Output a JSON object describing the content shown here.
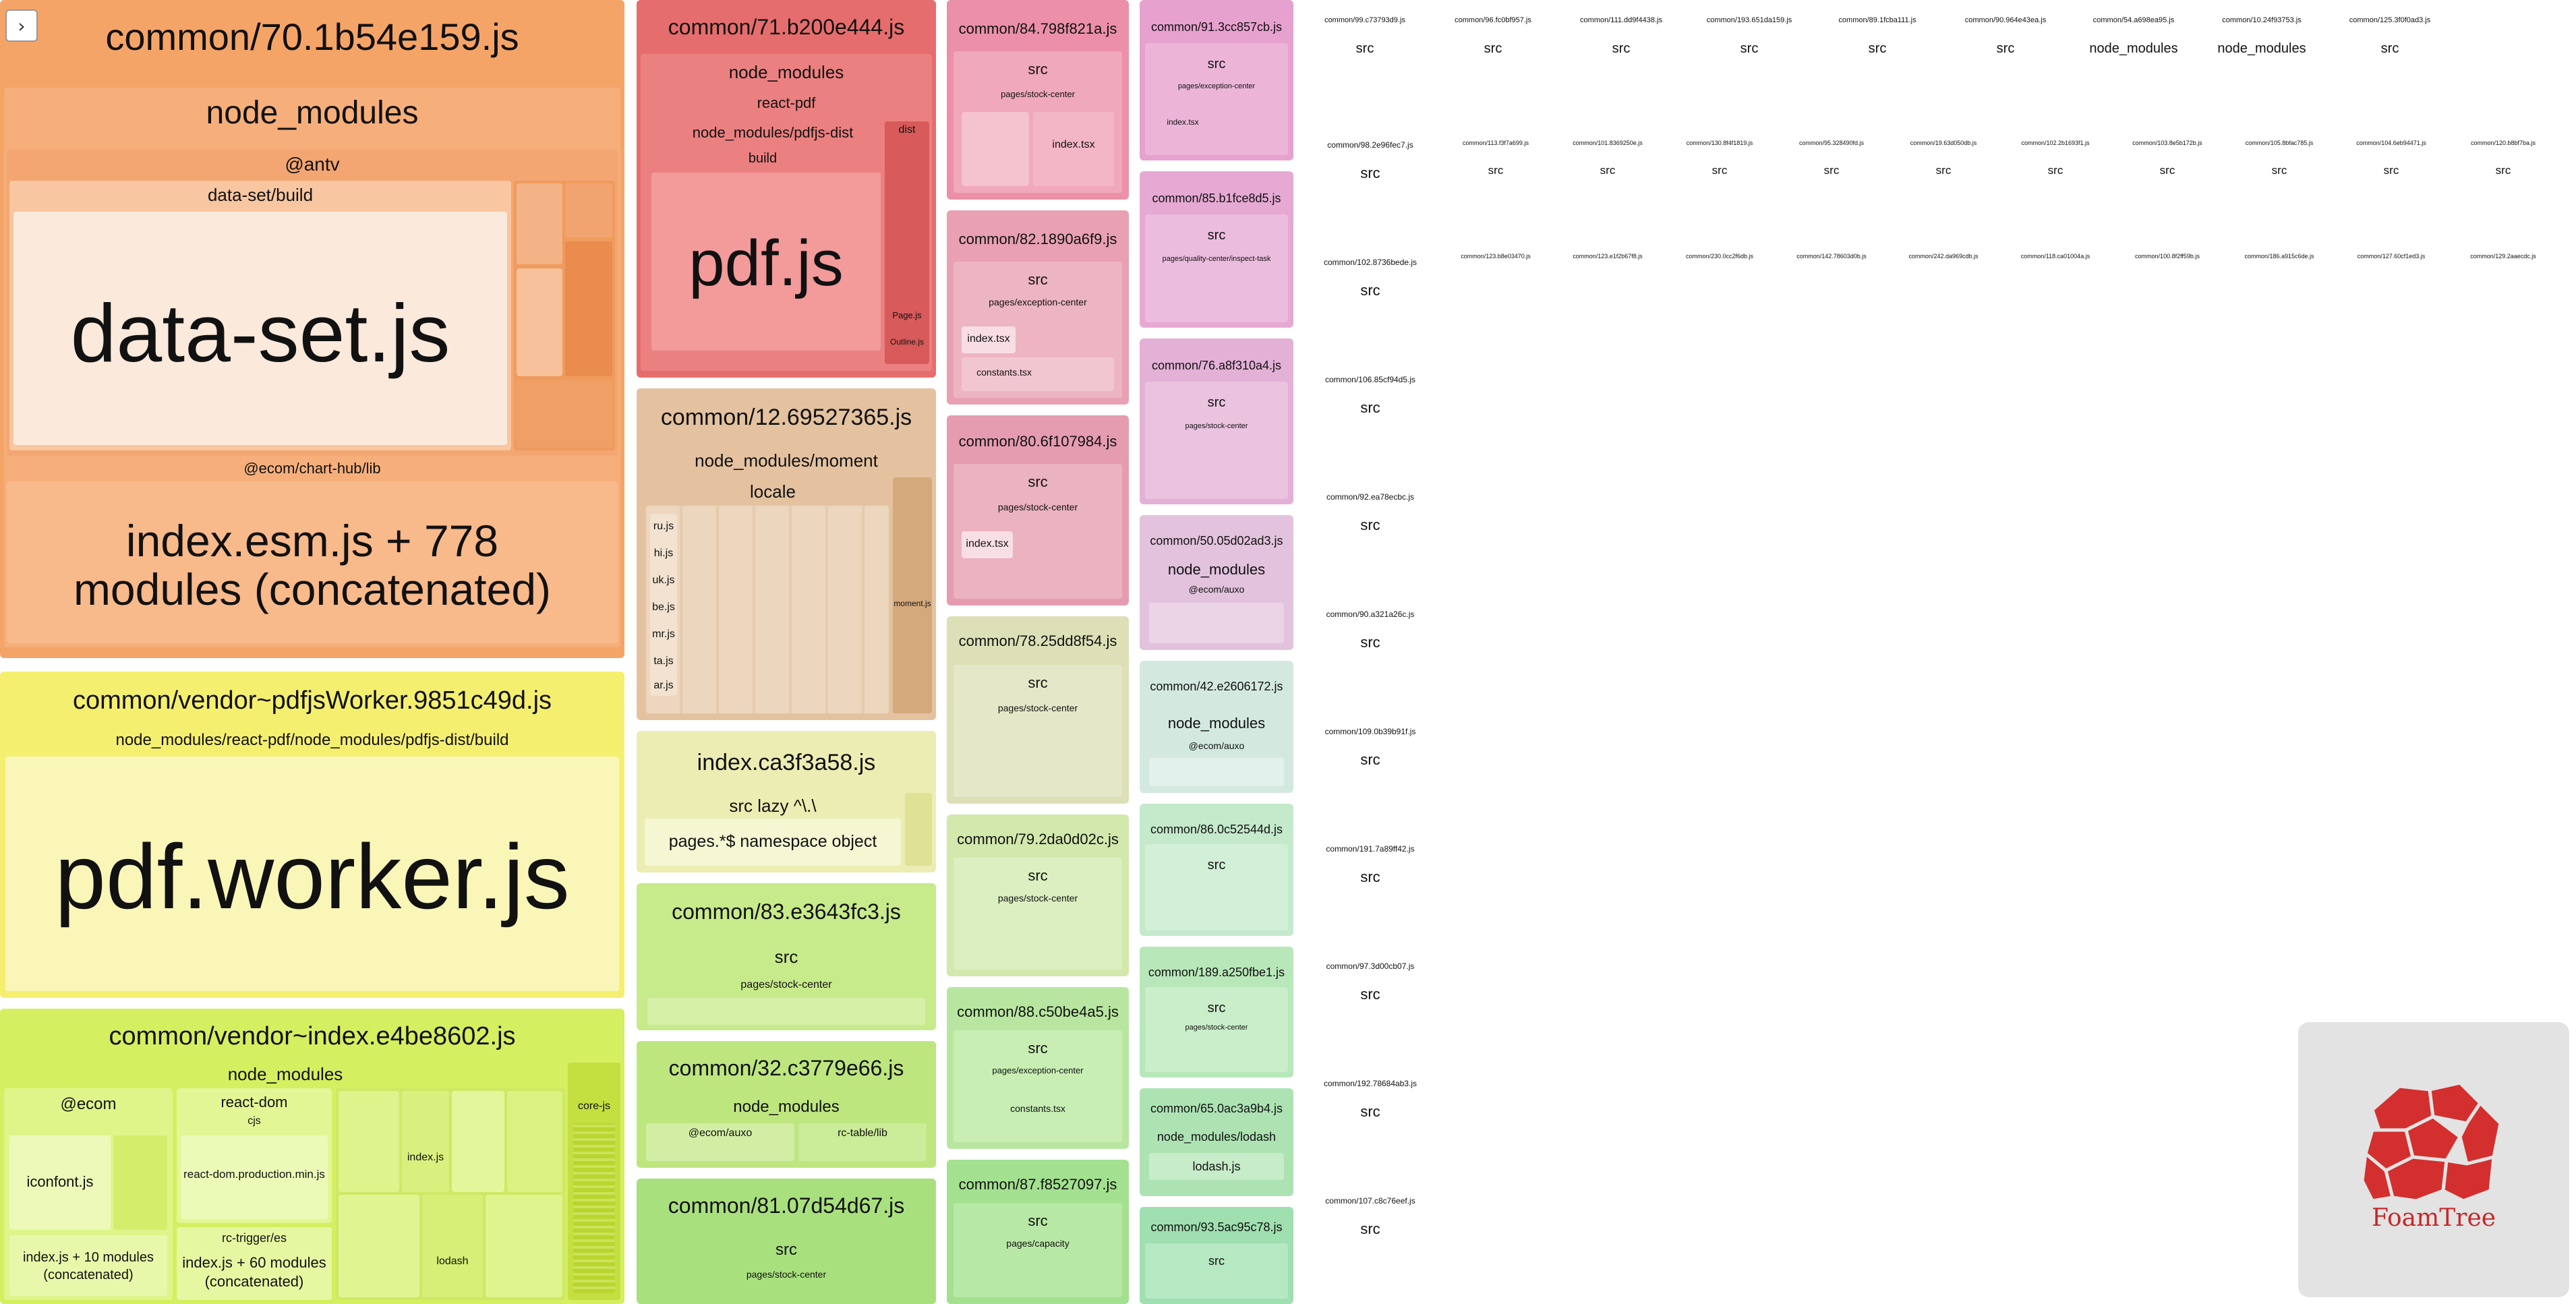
{
  "ui": {
    "toggle_icon": "›",
    "logo_label": "FoamTree"
  },
  "colors": {
    "orange": "#f3a56b",
    "yellow": "#f5f07a",
    "lime": "#d6ef67",
    "red": "#e8757a",
    "tan": "#e2c4a4",
    "pink": "#e5a3c2",
    "violet": "#b58fe6",
    "blue": "#5e86f0",
    "teal": "#6fd9e0",
    "green": "#9fdf86"
  },
  "chunks": {
    "c70": {
      "title": "common/70.1b54e159.js",
      "nm": "node_modules",
      "antv": "@antv",
      "ds_build": "data-set/build",
      "ds_js": "data-set.js",
      "chart_hub": "@ecom/chart-hub/lib",
      "index_esm_1": "index.esm.js + 778",
      "index_esm_2": "modules (concatenated)"
    },
    "worker": {
      "title": "common/vendor~pdfjsWorker.9851c49d.js",
      "path": "node_modules/react-pdf/node_modules/pdfjs-dist/build",
      "file": "pdf.worker.js"
    },
    "vendor_index": {
      "title": "common/vendor~index.e4be8602.js",
      "nm": "node_modules",
      "ecom": "@ecom",
      "react_dom": "react-dom",
      "cjs": "cjs",
      "iconfont": "iconfont.js",
      "rdom_prod": "react-dom.production.min.js",
      "index_10_1": "index.js + 10 modules",
      "index_10_2": "(concatenated)",
      "rc_trigger": "rc-trigger/es",
      "index_60_1": "index.js + 60 modules",
      "index_60_2": "(concatenated)",
      "index_js": "index.js",
      "lodash": "lodash",
      "core_js": "core-js"
    },
    "c71": {
      "title": "common/71.b200e444.js",
      "nm": "node_modules",
      "react_pdf": "react-pdf",
      "pdfjs_dist": "node_modules/pdfjs-dist",
      "build": "build",
      "dist": "dist",
      "pdf_js": "pdf.js",
      "page_js": "Page.js",
      "outline_js": "Outline.js"
    },
    "c12": {
      "title": "common/12.69527365.js",
      "moment": "node_modules/moment",
      "locale": "locale",
      "files": [
        "ru.js",
        "hi.js",
        "uk.js",
        "be.js",
        "mr.js",
        "ta.js",
        "ar.js"
      ],
      "moment_js": "moment.js"
    },
    "ca3": {
      "title": "index.ca3f3a58.js",
      "lazy": "src lazy ^\\.\\",
      "pages": "pages.*$ namespace object"
    },
    "c83": {
      "title": "common/83.e3643fc3.js",
      "src": "src",
      "path": "pages/stock-center"
    },
    "c32": {
      "title": "common/32.c3779e66.js",
      "nm": "node_modules",
      "auxo": "@ecom/auxo",
      "rctable": "rc-table/lib"
    },
    "c81": {
      "title": "common/81.07d54d67.js",
      "src": "src",
      "path": "pages/stock-center"
    },
    "c84": {
      "title": "common/84.798f821a.js",
      "src": "src",
      "path": "pages/stock-center",
      "index_tsx": "index.tsx"
    },
    "c82": {
      "title": "common/82.1890a6f9.js",
      "src": "src",
      "path": "pages/exception-center",
      "index_tsx": "index.tsx",
      "constants": "constants.tsx"
    },
    "c80": {
      "title": "common/80.6f107984.js",
      "src": "src",
      "path": "pages/stock-center",
      "index_tsx": "index.tsx"
    },
    "c78": {
      "title": "common/78.25dd8f54.js",
      "src": "src",
      "path": "pages/stock-center"
    },
    "c79": {
      "title": "common/79.2da0d02c.js",
      "src": "src",
      "path": "pages/stock-center"
    },
    "c88": {
      "title": "common/88.c50be4a5.js",
      "src": "src",
      "path": "pages/exception-center",
      "constants": "constants.tsx"
    },
    "c87": {
      "title": "common/87.f8527097.js",
      "src": "src",
      "path": "pages/capacity"
    },
    "c91": {
      "title": "common/91.3cc857cb.js",
      "src": "src",
      "path": "pages/exception-center",
      "index_tsx": "index.tsx"
    },
    "c85": {
      "title": "common/85.b1fce8d5.js",
      "src": "src",
      "path": "pages/quality-center/inspect-task"
    },
    "c76": {
      "title": "common/76.a8f310a4.js",
      "src": "src",
      "path": "pages/stock-center"
    },
    "c50": {
      "title": "common/50.05d02ad3.js",
      "nm": "node_modules",
      "auxo": "@ecom/auxo"
    },
    "c42": {
      "title": "common/42.e2606172.js",
      "nm": "node_modules",
      "auxo": "@ecom/auxo"
    },
    "c86": {
      "title": "common/86.0c52544d.js",
      "src": "src"
    },
    "c189": {
      "title": "common/189.a250fbe1.js",
      "src": "src",
      "path": "pages/stock-center"
    },
    "c65": {
      "title": "common/65.0ac3a9b4.js",
      "lodash_nm": "node_modules/lodash",
      "lodash_js": "lodash.js"
    },
    "c93": {
      "title": "common/93.5ac95c78.js",
      "src": "src"
    }
  },
  "grid": {
    "top_row": [
      "common/99.c73793d9.js",
      "common/96.fc0bf957.js",
      "common/111.dd9f4438.js",
      "common/193.651da159.js",
      "common/89.1fcba111.js",
      "common/90.964e43ea.js",
      "common/54.a698ea95.js",
      "common/10.24f93753.js",
      "common/125.3f0f0ad3.js"
    ],
    "top_row_inner": [
      "src",
      "src",
      "src",
      "src",
      "src",
      "src",
      "node_modules",
      "node_modules",
      "src"
    ],
    "col1": [
      "common/98.2e96fec7.js",
      "common/102.8736bede.js",
      "common/106.85cf94d5.js",
      "common/92.ea78ecbc.js",
      "common/90.a321a26c.js",
      "common/109.0b39b91f.js",
      "common/191.7a89ff42.js",
      "common/97.3d00cb07.js",
      "common/192.78684ab3.js",
      "common/107.c8c76eef.js"
    ],
    "col1_inner": [
      "src",
      "src",
      "src",
      "src",
      "src",
      "src",
      "src",
      "src",
      "src",
      "src"
    ],
    "row2": [
      "common/113.f3f7a699.js",
      "common/101.8369250e.js",
      "common/130.8f4f1819.js",
      "common/95.328490fd.js",
      "common/19.63d050db.js",
      "common/102.2b1693f1.js",
      "common/103.8e5b172b.js",
      "common/105.8bfac785.js",
      "common/104.6eb94471.js",
      "common/120.b8bf7ba.js"
    ],
    "row3": [
      "common/123.b8e03470.js",
      "common/123.e1f2b67f8.js",
      "common/230.0cc2f6db.js",
      "common/142.78603d0b.js",
      "common/242.da969cdb.js",
      "common/118.ca01004a.js",
      "common/100.8f2ff59b.js",
      "common/186.a915c6de.js",
      "common/127.60cf1ed3.js",
      "common/129.2aaecdc.js"
    ]
  }
}
